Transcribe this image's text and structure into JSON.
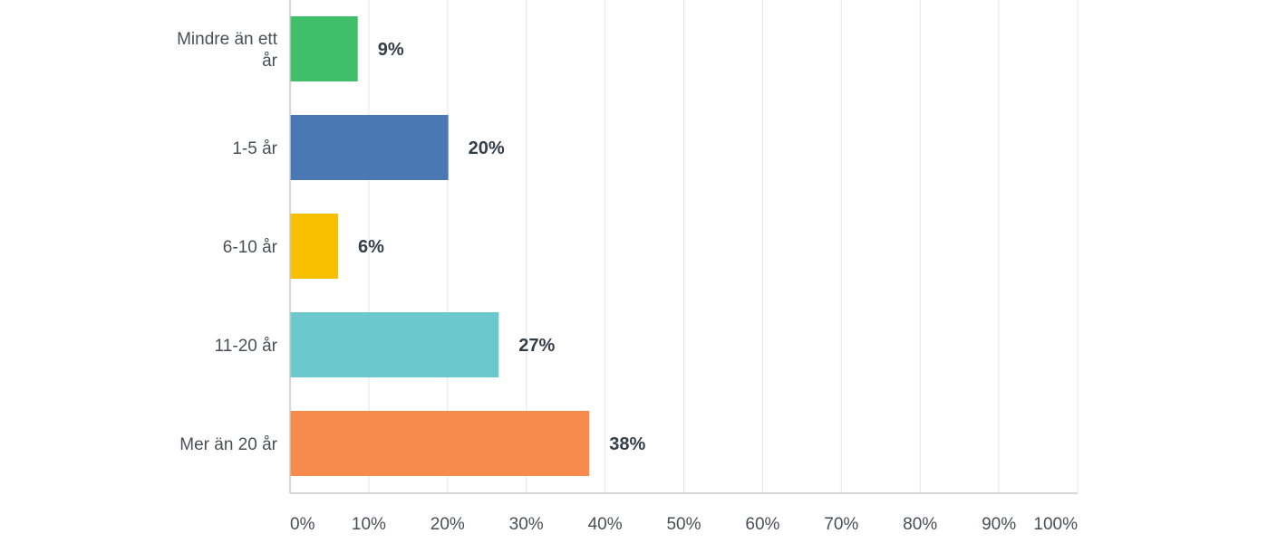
{
  "chart_data": {
    "type": "bar",
    "orientation": "horizontal",
    "categories": [
      "Mindre än ett år",
      "1-5 år",
      "6-10 år",
      "11-20 år",
      "Mer än 20 år"
    ],
    "category_lines": [
      [
        "Mindre än ett",
        "år"
      ],
      [
        "1-5 år"
      ],
      [
        "6-10 år"
      ],
      [
        "11-20 år"
      ],
      [
        "Mer än 20 år"
      ]
    ],
    "values": [
      8.6,
      20.1,
      6.1,
      26.5,
      38.0
    ],
    "value_labels": [
      "9%",
      "20%",
      "6%",
      "27%",
      "38%"
    ],
    "colors": [
      "#40bf6b",
      "#4a78b5",
      "#f7bf00",
      "#6bc8cd",
      "#f68b4e"
    ],
    "xlim": [
      0,
      100
    ],
    "ticks": [
      0,
      10,
      20,
      30,
      40,
      50,
      60,
      70,
      80,
      90,
      100
    ],
    "tick_labels": [
      "0%",
      "10%",
      "20%",
      "30%",
      "40%",
      "50%",
      "60%",
      "70%",
      "80%",
      "90%",
      "100%"
    ],
    "grid": true,
    "title": "",
    "xlabel": "",
    "ylabel": ""
  }
}
